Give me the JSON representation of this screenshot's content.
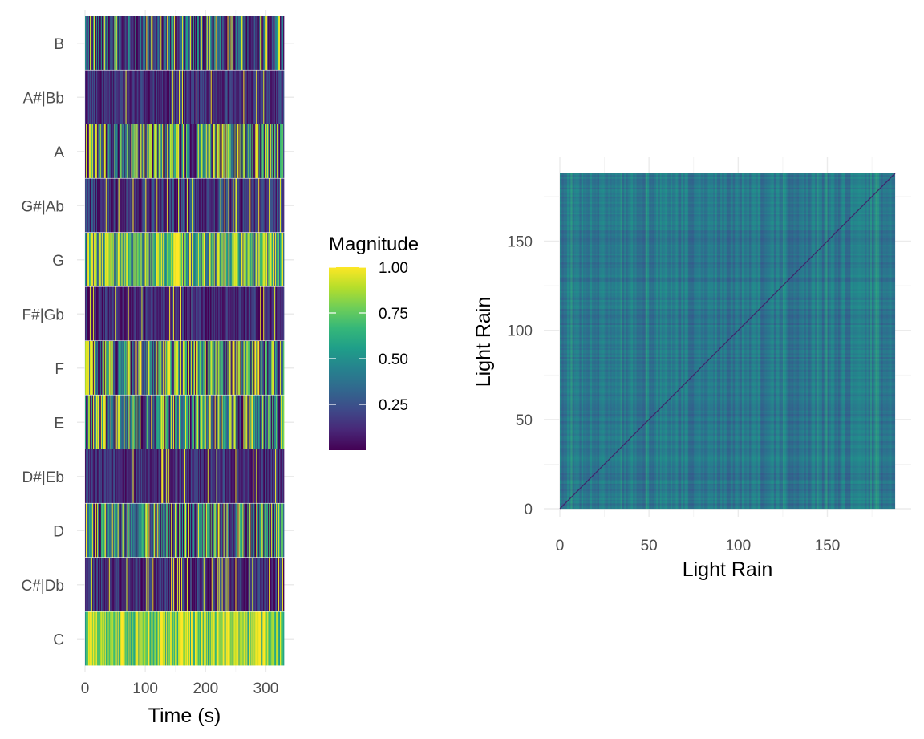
{
  "chart_data": [
    {
      "type": "heatmap",
      "title": "",
      "xlabel": "Time (s)",
      "ylabel": "",
      "x_range": [
        0,
        330
      ],
      "x_ticks": [
        0,
        100,
        200,
        300
      ],
      "y_categories": [
        "C",
        "C#|Db",
        "D",
        "D#|Eb",
        "E",
        "F",
        "F#|Gb",
        "G",
        "G#|Ab",
        "A",
        "A#|Bb",
        "B"
      ],
      "grid": true,
      "legend": {
        "title": "Magnitude",
        "position": "right",
        "ticks": [
          "0.25",
          "0.50",
          "0.75",
          "1.00"
        ],
        "tick_values": [
          0.25,
          0.5,
          0.75,
          1.0
        ],
        "range": [
          0,
          1
        ]
      },
      "colorscale": [
        "#440154",
        "#482878",
        "#3e4a89",
        "#31688e",
        "#26828e",
        "#1f9e89",
        "#35b779",
        "#6ece58",
        "#b5de2b",
        "#fde725"
      ],
      "row_levels": {
        "C": {
          "mean": 0.82,
          "spread": 0.3
        },
        "C#|Db": {
          "mean": 0.12,
          "spread": 0.2
        },
        "D": {
          "mean": 0.32,
          "spread": 0.45
        },
        "D#|Eb": {
          "mean": 0.12,
          "spread": 0.15
        },
        "E": {
          "mean": 0.38,
          "spread": 0.5
        },
        "F": {
          "mean": 0.4,
          "spread": 0.5
        },
        "F#|Gb": {
          "mean": 0.1,
          "spread": 0.15
        },
        "G": {
          "mean": 0.65,
          "spread": 0.45
        },
        "G#|Ab": {
          "mean": 0.15,
          "spread": 0.2
        },
        "A": {
          "mean": 0.3,
          "spread": 0.6
        },
        "A#|Bb": {
          "mean": 0.13,
          "spread": 0.15
        },
        "B": {
          "mean": 0.22,
          "spread": 0.4
        }
      }
    },
    {
      "type": "heatmap",
      "title": "",
      "xlabel": "Light Rain",
      "ylabel": "Light Rain",
      "x_range": [
        0,
        188
      ],
      "y_range": [
        0,
        188
      ],
      "x_ticks": [
        0,
        50,
        100,
        150
      ],
      "y_ticks": [
        0,
        50,
        100,
        150
      ],
      "grid": true,
      "description_values": {
        "typical_value": 0.4,
        "diagonal_value": 0.05,
        "bright_band_value": 0.6
      }
    }
  ]
}
